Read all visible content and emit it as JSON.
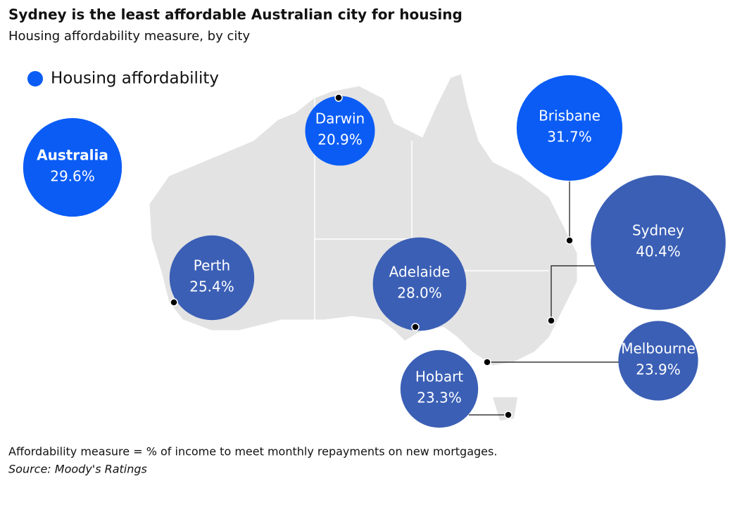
{
  "chart_data": {
    "type": "bubble-map",
    "title": "Sydney is the least affordable Australian city for housing",
    "subtitle": "Housing affordability measure, by city",
    "legend": {
      "name": "Housing affordability",
      "color": "#0a5cf5"
    },
    "categories": [
      "Australia",
      "Darwin",
      "Brisbane",
      "Sydney",
      "Perth",
      "Adelaide",
      "Melbourne",
      "Hobart"
    ],
    "values": [
      29.6,
      20.9,
      31.7,
      40.4,
      25.4,
      28.0,
      23.9,
      23.3
    ],
    "value_labels": [
      "29.6%",
      "20.9%",
      "31.7%",
      "40.4%",
      "25.4%",
      "28.0%",
      "23.9%",
      "23.3%"
    ],
    "colors": [
      "#0a5cf5",
      "#0a5cf5",
      "#0a5cf5",
      "#3b5fb5",
      "#3b5fb5",
      "#3b5fb5",
      "#3b5fb5",
      "#3b5fb5"
    ],
    "footnote": "Affordability measure = % of income to meet monthly repayments on new mortgages.",
    "source": "Source: Moody's Ratings"
  }
}
